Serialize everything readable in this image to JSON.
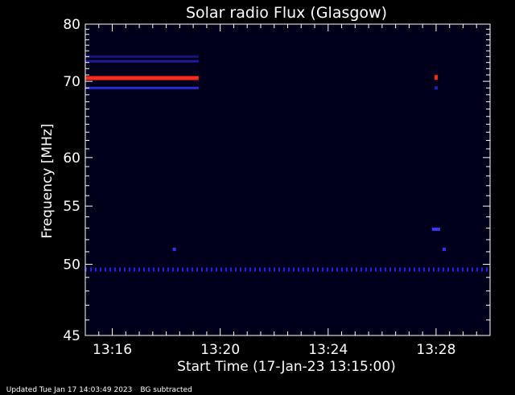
{
  "chart_data": {
    "type": "heatmap",
    "title": "Solar radio Flux (Glasgow)",
    "xlabel": "Start Time (17-Jan-23 13:15:00)",
    "ylabel": "Frequency [MHz]",
    "x_unit": "minutes after 13:15:00",
    "xlim": [
      0.0,
      15.0
    ],
    "ylim": [
      80,
      45
    ],
    "x_tick_labels": [
      {
        "t": 1,
        "label": "13:16"
      },
      {
        "t": 5,
        "label": "13:20"
      },
      {
        "t": 9,
        "label": "13:24"
      },
      {
        "t": 13,
        "label": "13:28"
      }
    ],
    "y_tick_labels": [
      {
        "f": 45,
        "label": "45"
      },
      {
        "f": 50,
        "label": "50"
      },
      {
        "f": 55,
        "label": "55"
      },
      {
        "f": 60,
        "label": "60"
      },
      {
        "f": 70,
        "label": "70"
      },
      {
        "f": 80,
        "label": "80"
      }
    ],
    "background_color": "#00001a",
    "features": [
      {
        "kind": "dotted-band",
        "freq_mhz": 49.6,
        "t_start": 0.0,
        "t_end": 15.0,
        "color": "#2020ff",
        "intensity": "medium"
      },
      {
        "kind": "band",
        "freq_mhz": 70.5,
        "t_start": 0.0,
        "t_end": 4.2,
        "color": "#ff2a1a",
        "intensity": "high"
      },
      {
        "kind": "band",
        "freq_mhz": 69.0,
        "t_start": 0.0,
        "t_end": 4.2,
        "color": "#2a2ad0",
        "intensity": "low"
      },
      {
        "kind": "band",
        "freq_mhz": 73.2,
        "t_start": 0.0,
        "t_end": 4.2,
        "color": "#1c1c9a",
        "intensity": "low"
      },
      {
        "kind": "band",
        "freq_mhz": 74.0,
        "t_start": 0.0,
        "t_end": 4.2,
        "color": "#15157a",
        "intensity": "low"
      },
      {
        "kind": "spot",
        "freq_mhz": 51.2,
        "t": 3.3,
        "color": "#3030ff",
        "intensity": "medium"
      },
      {
        "kind": "spot",
        "freq_mhz": 51.2,
        "t": 13.3,
        "color": "#3030ff",
        "intensity": "medium"
      },
      {
        "kind": "spot",
        "freq_mhz": 52.9,
        "t": 13.0,
        "color": "#3a3aff",
        "intensity": "medium"
      },
      {
        "kind": "spot",
        "freq_mhz": 70.6,
        "t": 13.0,
        "color": "#ff2a1a",
        "intensity": "high"
      },
      {
        "kind": "spot",
        "freq_mhz": 69.0,
        "t": 13.0,
        "color": "#2020c0",
        "intensity": "low"
      }
    ],
    "grid": false,
    "legend": "none"
  },
  "footer": {
    "updated": "Updated Tue Jan 17 14:03:49 2023",
    "note": "BG subtracted"
  }
}
